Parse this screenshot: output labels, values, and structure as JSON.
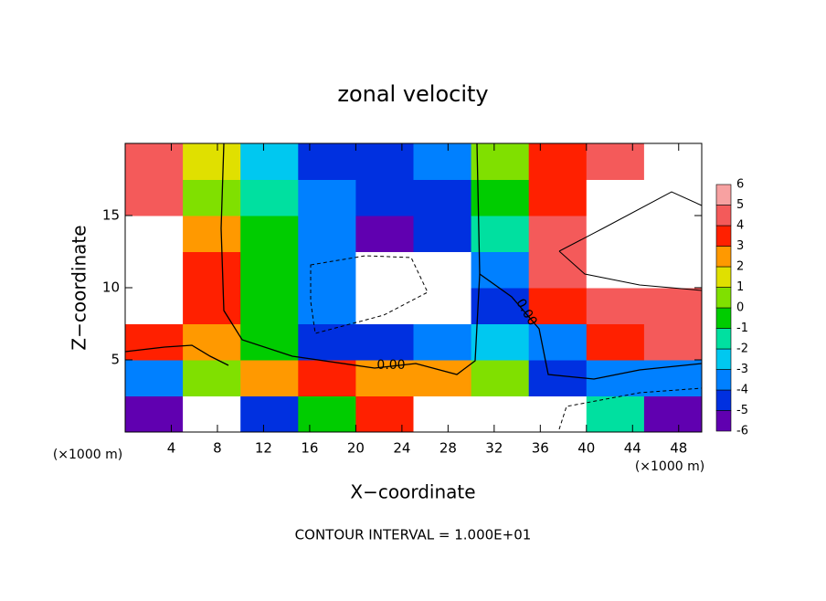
{
  "chart_data": {
    "type": "contour",
    "title": "zonal velocity",
    "xlabel": "X−coordinate",
    "ylabel": "Z−coordinate",
    "x_unit_left": "(×1000 m)",
    "x_unit_right": "(×1000 m)",
    "footer": "CONTOUR INTERVAL = 1.000E+01",
    "annotations": [
      "0.00",
      "0.00"
    ],
    "xlim": [
      0,
      50
    ],
    "ylim": [
      0,
      20
    ],
    "xticks": [
      4,
      8,
      12,
      16,
      20,
      24,
      28,
      32,
      36,
      40,
      44,
      48
    ],
    "yticks": [
      5,
      10,
      15
    ],
    "x_edges": [
      0,
      5,
      10,
      15,
      20,
      25,
      30,
      35,
      40,
      45,
      50
    ],
    "y_edges": [
      0,
      2.5,
      5,
      7.5,
      10,
      12.5,
      15,
      17.5,
      20
    ],
    "values": [
      [
        -5,
        8,
        -4,
        0,
        4,
        8,
        8,
        8,
        -1,
        -5
      ],
      [
        -3,
        1,
        3,
        4,
        3,
        3,
        1,
        -4,
        -3,
        -3
      ],
      [
        4,
        3,
        0,
        -4,
        -4,
        -3,
        -2,
        -3,
        4,
        5
      ],
      [
        8,
        4,
        0,
        -3,
        8,
        8,
        -4,
        4,
        5,
        5
      ],
      [
        8,
        4,
        0,
        -3,
        8,
        8,
        -3,
        5,
        8,
        8
      ],
      [
        8,
        3,
        0,
        -3,
        -5,
        -4,
        -1,
        5,
        8,
        8
      ],
      [
        5,
        1,
        -1,
        -3,
        -4,
        -4,
        0,
        4,
        8,
        8
      ],
      [
        5,
        2,
        -2,
        -4,
        -4,
        -3,
        1,
        4,
        5,
        8
      ]
    ],
    "levels": [
      -6,
      -5,
      -4,
      -3,
      -2,
      -1,
      0,
      1,
      2,
      3,
      4,
      5,
      6
    ],
    "colors": [
      "#6000b0",
      "#0030e0",
      "#0080ff",
      "#00c8f0",
      "#00e0a0",
      "#00cc00",
      "#80e000",
      "#e0e000",
      "#ff9900",
      "#ff2000",
      "#f45a5a",
      "#f7a1a1"
    ]
  }
}
